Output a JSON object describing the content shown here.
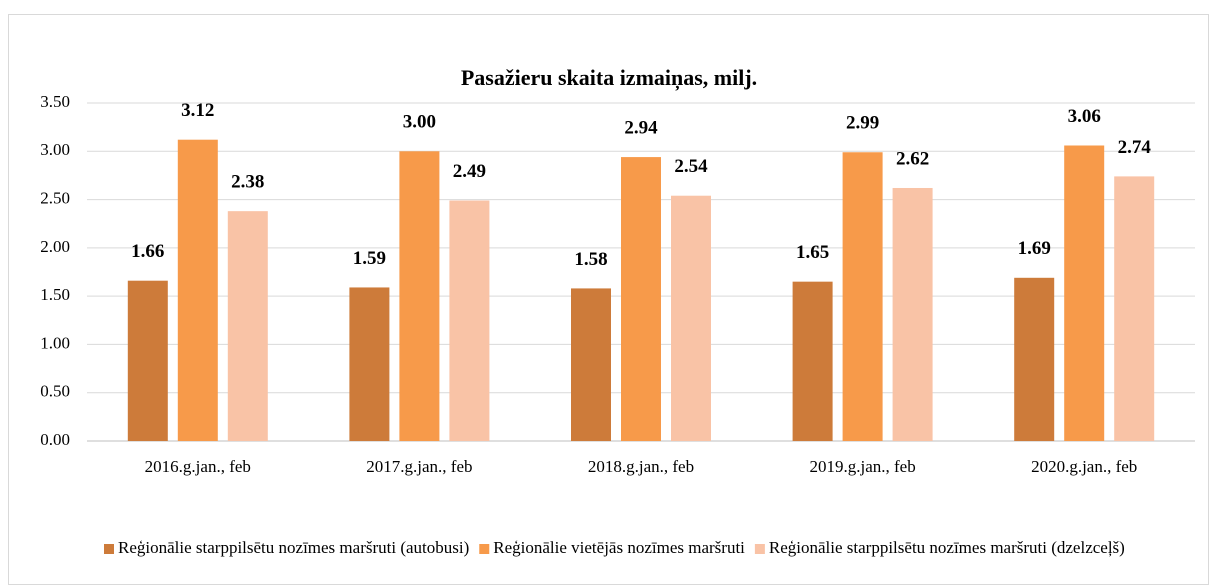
{
  "chart_data": {
    "type": "bar",
    "title": "Pasažieru skaita izmaiņas, milj.",
    "categories": [
      "2016.g.jan., feb",
      "2017.g.jan., feb",
      "2018.g.jan., feb",
      "2019.g.jan., feb",
      "2020.g.jan., feb"
    ],
    "series": [
      {
        "name": "Reģionālie starppilsētu nozīmes maršruti (autobusi)",
        "color": "#cd7b3a",
        "values": [
          1.66,
          1.59,
          1.58,
          1.65,
          1.69
        ],
        "value_labels": [
          "1.66",
          "1.59",
          "1.58",
          "1.65",
          "1.69"
        ]
      },
      {
        "name": "Reģionālie vietējās nozīmes maršruti",
        "color": "#f79a4a",
        "values": [
          3.12,
          3.0,
          2.94,
          2.99,
          3.06
        ],
        "value_labels": [
          "3.12",
          "3.00",
          "2.94",
          "2.99",
          "3.06"
        ]
      },
      {
        "name": "Reģionālie starppilsētu nozīmes maršruti (dzelzceļš)",
        "color": "#f9c3a6",
        "values": [
          2.38,
          2.49,
          2.54,
          2.62,
          2.74
        ],
        "value_labels": [
          "2.38",
          "2.49",
          "2.54",
          "2.62",
          "2.74"
        ]
      }
    ],
    "ylim": [
      0,
      3.5
    ],
    "yticks": [
      {
        "value": 0,
        "label": "0.00"
      },
      {
        "value": 0.5,
        "label": "0.50"
      },
      {
        "value": 1,
        "label": "1.00"
      },
      {
        "value": 1.5,
        "label": "1.50"
      },
      {
        "value": 2,
        "label": "2.00"
      },
      {
        "value": 2.5,
        "label": "2.50"
      },
      {
        "value": 3,
        "label": "3.00"
      },
      {
        "value": 3.5,
        "label": "3.50"
      }
    ],
    "grid": true,
    "legend": "bottom"
  }
}
